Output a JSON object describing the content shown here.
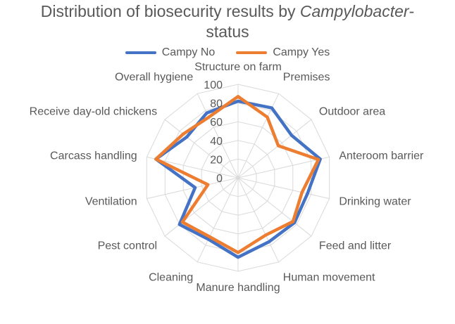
{
  "chart_data": {
    "type": "radar",
    "title_line1": "Distribution of biosecurity results by ",
    "title_italic": "Campylobacter",
    "title_dash": "-",
    "title_line2": "status",
    "categories": [
      "Structure on farm",
      "Premises",
      "Outdoor area",
      "Anteroom barrier",
      "Drinking water",
      "Feed and litter",
      "Human movement",
      "Manure handling",
      "Cleaning",
      "Pest control",
      "Ventilation",
      "Carcass handling",
      "Receive day-old chickens",
      "Overall hygiene"
    ],
    "series": [
      {
        "name": "Campy No",
        "color": "#4472C4",
        "values": [
          82,
          83,
          73,
          90,
          76,
          77,
          76,
          85,
          73,
          80,
          47,
          90,
          70,
          77
        ]
      },
      {
        "name": "Campy Yes",
        "color": "#ED7D31",
        "values": [
          87,
          72,
          55,
          88,
          70,
          75,
          68,
          80,
          70,
          76,
          33,
          90,
          75,
          72
        ]
      }
    ],
    "rlim": [
      0,
      100
    ],
    "ticks": [
      "0",
      "20",
      "40",
      "60",
      "80",
      "100"
    ],
    "tick_values": [
      0,
      20,
      40,
      60,
      80,
      100
    ],
    "legend_position": "top"
  }
}
